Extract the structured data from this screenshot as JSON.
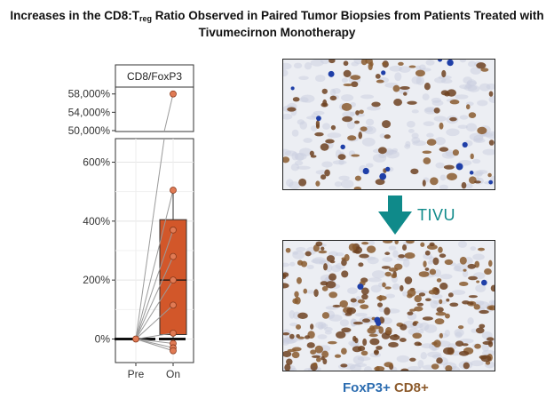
{
  "title": {
    "part1": "Increases in the CD8:T",
    "sub": "reg",
    "part2": " Ratio Observed in Paired Tumor Biopsies from Patients Treated with",
    "line2": "Tivumecirnon Monotherapy"
  },
  "chart_data": {
    "type": "box",
    "facet_label": "CD8/FoxP3",
    "categories": [
      "Pre",
      "On"
    ],
    "y_tick_labels_lower": [
      "0%",
      "200%",
      "400%",
      "600%"
    ],
    "y_ticks_lower": [
      0,
      200,
      400,
      600
    ],
    "ylim_lower": [
      -80,
      680
    ],
    "y_tick_labels_upper": [
      "50,000%",
      "54,000%",
      "58,000%"
    ],
    "y_ticks_upper": [
      50000,
      54000,
      58000
    ],
    "ylim_upper": [
      49800,
      59500
    ],
    "pre_values": [
      0,
      0,
      0,
      0,
      0,
      0,
      0,
      0,
      0,
      0
    ],
    "on_values": [
      58000,
      505,
      370,
      280,
      200,
      115,
      20,
      -15,
      -30,
      -40
    ],
    "box_on": {
      "q1": 15,
      "median": 200,
      "q3": 405,
      "whisker_low": -40,
      "whisker_high": 505
    },
    "box_pre": {
      "q1": 0,
      "median": 0,
      "q3": 0
    },
    "colors": {
      "box": "#d2572a",
      "point": "#e07a54",
      "line": "#9a9a9a",
      "median": "#111111"
    }
  },
  "images": {
    "pre_alt": "Pre-treatment IHC stained tumor biopsy",
    "on_alt": "On-treatment IHC stained tumor biopsy"
  },
  "arrow_label": "TIVU",
  "legend": {
    "foxp3": "FoxP3+",
    "cd8": "CD8+"
  },
  "colors": {
    "teal": "#0f8a8a",
    "foxp3": "#2b6cb0",
    "cd8": "#8c5a2b"
  }
}
